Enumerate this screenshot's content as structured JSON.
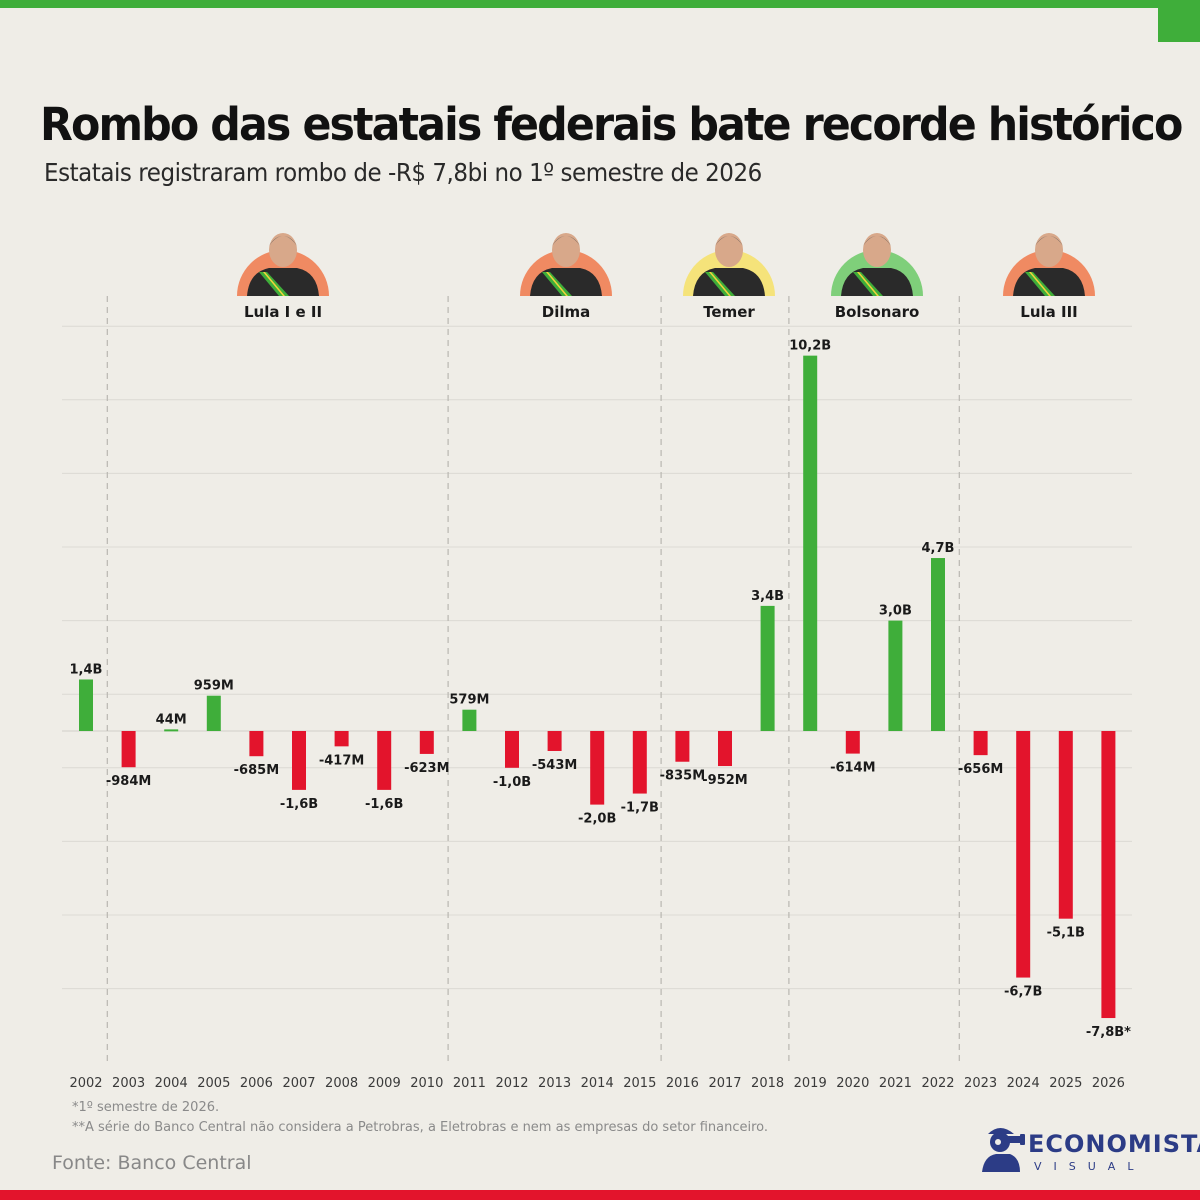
{
  "title": "Rombo das estatais federais bate recorde histórico",
  "subtitle": "Estatais registraram rombo de -R$ 7,8bi no 1º semestre de 2026",
  "notes": [
    "*1º semestre de 2026.",
    "**A série do Banco Central não considera a Petrobras, a Eletrobras e nem as empresas do setor financeiro."
  ],
  "source": "Fonte: Banco Central",
  "brand": {
    "name": "ECONOMISTA",
    "sub": "VISUAL"
  },
  "colors": {
    "positive": "#3fae3a",
    "negative": "#e3142c",
    "background": "#efede7"
  },
  "governments": [
    {
      "name": "Lula I e II",
      "ring": "#f08a62"
    },
    {
      "name": "Dilma",
      "ring": "#f08a62"
    },
    {
      "name": "Temer",
      "ring": "#f5e37a"
    },
    {
      "name": "Bolsonaro",
      "ring": "#7fcf7a"
    },
    {
      "name": "Lula III",
      "ring": "#f08a62"
    }
  ],
  "chart_data": {
    "type": "bar",
    "title": "Rombo das estatais federais bate recorde histórico",
    "categories": [
      "2002",
      "2003",
      "2004",
      "2005",
      "2006",
      "2007",
      "2008",
      "2009",
      "2010",
      "2011",
      "2012",
      "2013",
      "2014",
      "2015",
      "2016",
      "2017",
      "2018",
      "2019",
      "2020",
      "2021",
      "2022",
      "2023",
      "2024",
      "2025",
      "2026"
    ],
    "values": [
      1.4,
      -0.984,
      0.044,
      0.959,
      -0.685,
      -1.6,
      -0.417,
      -1.6,
      -0.623,
      0.579,
      -1.0,
      -0.543,
      -2.0,
      -1.7,
      -0.835,
      -0.952,
      3.4,
      10.2,
      -0.614,
      3.0,
      4.7,
      -0.656,
      -6.7,
      -5.1,
      -7.8
    ],
    "labels": [
      "1,4B",
      "-984M",
      "44M",
      "959M",
      "-685M",
      "-1,6B",
      "-417M",
      "-1,6B",
      "-623M",
      "579M",
      "-1,0B",
      "-543M",
      "-2,0B",
      "-1,7B",
      "-835M",
      "-952M",
      "3,4B",
      "10,2B",
      "-614M",
      "3,0B",
      "4,7B",
      "-656M",
      "-6,7B",
      "-5,1B",
      "-7,8B*"
    ],
    "unit": "R$ bilhões",
    "ylim": [
      -9,
      11
    ],
    "grid": true,
    "government_spans": [
      {
        "name": "Lula I e II",
        "from": "2003",
        "to": "2010"
      },
      {
        "name": "Dilma",
        "from": "2011",
        "to": "2016"
      },
      {
        "name": "Temer",
        "from": "2016",
        "to": "2018"
      },
      {
        "name": "Bolsonaro",
        "from": "2019",
        "to": "2022"
      },
      {
        "name": "Lula III",
        "from": "2023",
        "to": "2026"
      }
    ]
  }
}
